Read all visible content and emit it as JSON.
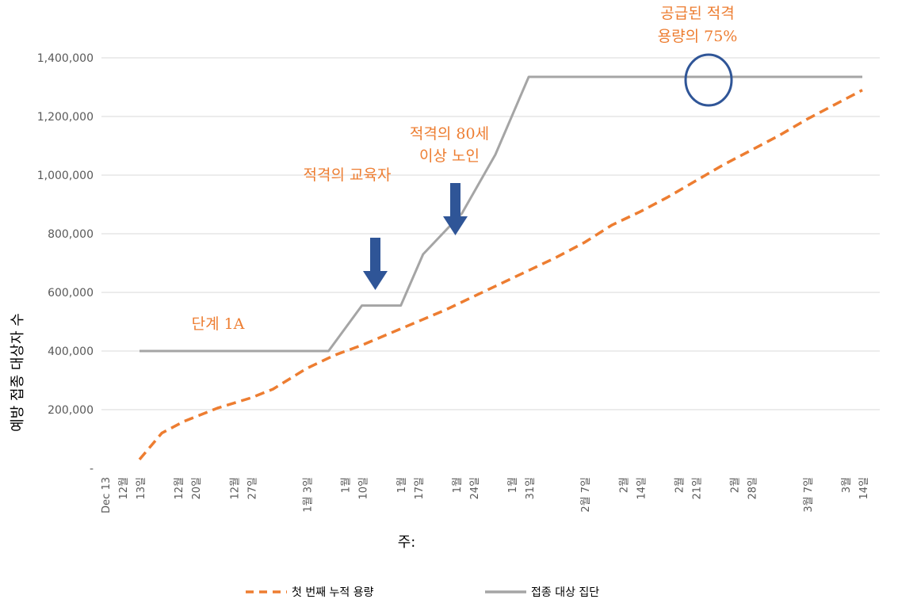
{
  "chart_data": {
    "type": "line",
    "xlabel": "주:",
    "ylabel": "예방 접종 대상자 수",
    "ylim": [
      0,
      1400000
    ],
    "yticks": [
      {
        "value": 0,
        "label": "-"
      },
      {
        "value": 200000,
        "label": "200,000"
      },
      {
        "value": 400000,
        "label": "400,000"
      },
      {
        "value": 600000,
        "label": "600,000"
      },
      {
        "value": 800000,
        "label": "800,000"
      },
      {
        "value": 1000000,
        "label": "1,000,000"
      },
      {
        "value": 1200000,
        "label": "1,200,000"
      },
      {
        "value": 1400000,
        "label": "1,400,000"
      }
    ],
    "xlim": [
      0,
      13
    ],
    "xticks": [
      {
        "x": 0,
        "lines": [
          "Dec 13",
          "12월",
          "13일"
        ]
      },
      {
        "x": 1,
        "lines": [
          "12월",
          "20일"
        ]
      },
      {
        "x": 2,
        "lines": [
          "12월",
          "27일"
        ]
      },
      {
        "x": 3,
        "lines": [
          "1월 3일"
        ]
      },
      {
        "x": 4,
        "lines": [
          "1월",
          "10일"
        ]
      },
      {
        "x": 5,
        "lines": [
          "1월",
          "17일"
        ]
      },
      {
        "x": 6,
        "lines": [
          "1월",
          "24일"
        ]
      },
      {
        "x": 7,
        "lines": [
          "1월",
          "31일"
        ]
      },
      {
        "x": 8,
        "lines": [
          "2월 7일"
        ]
      },
      {
        "x": 9,
        "lines": [
          "2월",
          "14일"
        ]
      },
      {
        "x": 10,
        "lines": [
          "2월",
          "21일"
        ]
      },
      {
        "x": 11,
        "lines": [
          "2월",
          "28일"
        ]
      },
      {
        "x": 12,
        "lines": [
          "3월 7일"
        ]
      },
      {
        "x": 13,
        "lines": [
          "3월",
          "14일"
        ]
      }
    ],
    "grid": true,
    "legend_position": "bottom",
    "series": [
      {
        "name": "첫 번째 누적 용량",
        "color": "#ED7D31",
        "dash": true,
        "x": [
          0,
          0.4,
          0.8,
          1.4,
          2.0,
          2.4,
          3.0,
          3.5,
          4.0,
          4.5,
          5.0,
          5.5,
          6.0,
          6.5,
          7.0,
          7.5,
          8.0,
          8.5,
          9.0,
          9.5,
          10.0,
          10.5,
          11.0,
          11.5,
          12.0,
          12.5,
          13.0
        ],
        "values": [
          30000,
          120000,
          160000,
          205000,
          240000,
          270000,
          340000,
          385000,
          420000,
          460000,
          500000,
          540000,
          585000,
          630000,
          675000,
          720000,
          770000,
          830000,
          875000,
          925000,
          980000,
          1035000,
          1085000,
          1135000,
          1190000,
          1240000,
          1290000
        ]
      },
      {
        "name": "접종 대상 집단",
        "color": "#A5A5A5",
        "dash": false,
        "x": [
          0,
          3.4,
          4.0,
          4.7,
          5.1,
          5.8,
          6.4,
          7.0,
          13.0
        ],
        "values": [
          400000,
          400000,
          555000,
          555000,
          730000,
          870000,
          1070000,
          1335000,
          1335000
        ]
      }
    ],
    "annotations": [
      {
        "id": "phase1a",
        "text": [
          "단계 1A"
        ]
      },
      {
        "id": "educators",
        "text": [
          "적격의 교육자"
        ]
      },
      {
        "id": "elderly",
        "text": [
          "적격의 80세",
          "이상 노인"
        ]
      },
      {
        "id": "capacity",
        "text": [
          "공급된 적격",
          "용량의 75%"
        ]
      }
    ],
    "arrow_color": "#2F5597",
    "circle_color": "#2F5597"
  }
}
